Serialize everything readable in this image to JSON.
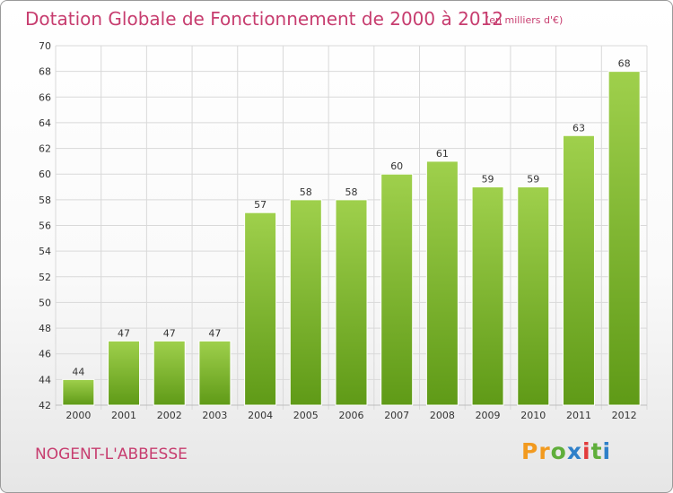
{
  "header": {
    "title": "Dotation Globale de Fonctionnement de 2000 à 2012",
    "unit": "(en milliers d'€)"
  },
  "footer": {
    "commune": "NOGENT-L'ABBESSE",
    "logo_text": "Proxiti"
  },
  "colors": {
    "title": "#c73d6f",
    "bar_light": "#9fd04c",
    "bar_dark": "#5f9a17",
    "logo_letters": [
      "#f29a1f",
      "#f29a1f",
      "#5fae3b",
      "#2f80c9",
      "#e23b3b",
      "#5fae3b",
      "#2f80c9"
    ]
  },
  "chart_data": {
    "type": "bar",
    "categories": [
      "2000",
      "2001",
      "2002",
      "2003",
      "2004",
      "2005",
      "2006",
      "2007",
      "2008",
      "2009",
      "2010",
      "2011",
      "2012"
    ],
    "values": [
      44,
      47,
      47,
      47,
      57,
      58,
      58,
      60,
      61,
      59,
      59,
      63,
      68
    ],
    "ylim": [
      42,
      70
    ],
    "yticks": [
      42,
      44,
      46,
      48,
      50,
      52,
      54,
      56,
      58,
      60,
      62,
      64,
      66,
      68,
      70
    ],
    "grid": true,
    "show_value_labels": true
  }
}
